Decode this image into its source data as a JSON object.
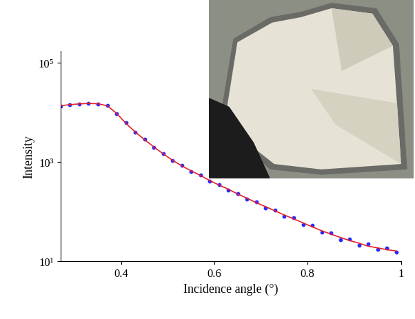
{
  "chart_data": {
    "type": "scatter",
    "x_label": "Incidence angle (°)",
    "y_label": "Intensity",
    "log": "y",
    "xlim": [
      0.27,
      1.0
    ],
    "xticks": [
      0.4,
      0.6,
      0.8,
      1
    ],
    "ylim": [
      10,
      170000
    ],
    "yticks": [
      {
        "value": 10,
        "label": "10¹"
      },
      {
        "value": 1000,
        "label": "10³"
      },
      {
        "value": 100000,
        "label": "10⁵"
      }
    ],
    "grid": false,
    "x": [
      0.27,
      0.29,
      0.31,
      0.33,
      0.35,
      0.37,
      0.39,
      0.41,
      0.43,
      0.45,
      0.47,
      0.49,
      0.51,
      0.53,
      0.55,
      0.57,
      0.59,
      0.61,
      0.63,
      0.65,
      0.67,
      0.69,
      0.71,
      0.73,
      0.75,
      0.77,
      0.79,
      0.81,
      0.83,
      0.85,
      0.87,
      0.89,
      0.91,
      0.93,
      0.95,
      0.97,
      0.99
    ],
    "series": [
      {
        "type": "scatter",
        "color": "#2a2aff",
        "marker": "o",
        "values": [
          13400,
          14300,
          14600,
          15100,
          14700,
          13600,
          9400,
          6100,
          3950,
          2850,
          1980,
          1470,
          1060,
          850,
          640,
          545,
          410,
          350,
          270,
          232,
          178,
          158,
          118,
          108,
          80,
          75,
          55,
          52,
          38,
          37,
          27,
          28,
          21,
          22,
          17,
          18.5,
          15
        ]
      },
      {
        "type": "line",
        "color": "#e0202a",
        "line_style": "solid",
        "values": [
          13500,
          14200,
          14700,
          15000,
          14800,
          13500,
          9500,
          6000,
          4000,
          2800,
          2000,
          1450,
          1080,
          830,
          660,
          530,
          420,
          340,
          280,
          225,
          185,
          150,
          125,
          103,
          85,
          71,
          59,
          49,
          41,
          35,
          30,
          26,
          23,
          20,
          18.5,
          17,
          16
        ]
      }
    ]
  }
}
